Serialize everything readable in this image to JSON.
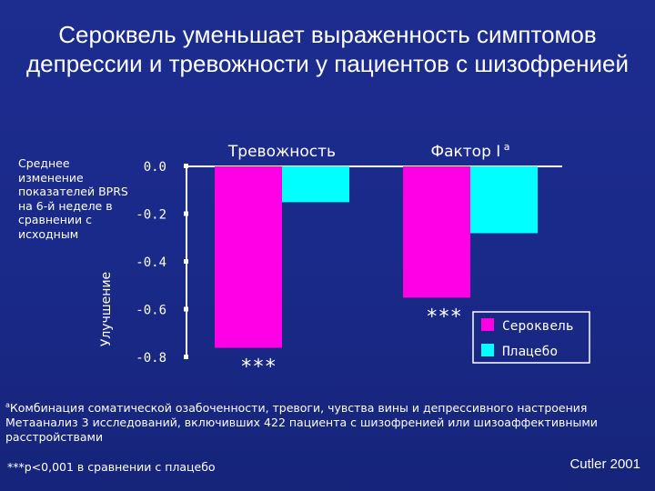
{
  "title": "Сероквель уменьшает выраженность симптомов депрессии и тревожности у пациентов с шизофренией",
  "chart_data": {
    "type": "bar",
    "categories": [
      "Тревожность",
      "Фактор I"
    ],
    "category_superscripts": [
      "",
      "a"
    ],
    "series": [
      {
        "name": "Сероквель",
        "color": "#ff00e6",
        "values": [
          -0.76,
          -0.55
        ]
      },
      {
        "name": "Плацебо",
        "color": "#00ffff",
        "values": [
          -0.15,
          -0.28
        ]
      }
    ],
    "significance": [
      "***",
      "***"
    ],
    "ylabel": "Среднее изменение показателей BPRS на 6-й неделе в сравнении с исходным",
    "y_arrow_label": "Улучшение",
    "yticks": [
      0.0,
      -0.2,
      -0.4,
      -0.6,
      -0.8
    ],
    "ytick_labels": [
      "0.0",
      "-0.2",
      "-0.4",
      "-0.6",
      "-0.8"
    ],
    "ylim": [
      -0.8,
      0.0
    ]
  },
  "footnote": {
    "marker": "a",
    "line1": "Комбинация соматической озабоченности, тревоги, чувства вины и депрессивного настроения",
    "line2": "Метаанализ 3 исследований, включивших 422 пациента с шизофренией или шизоаффективными расстройствами"
  },
  "pvalue_note": "***p<0,001 в сравнении с плацебо",
  "citation": "Cutler 2001"
}
